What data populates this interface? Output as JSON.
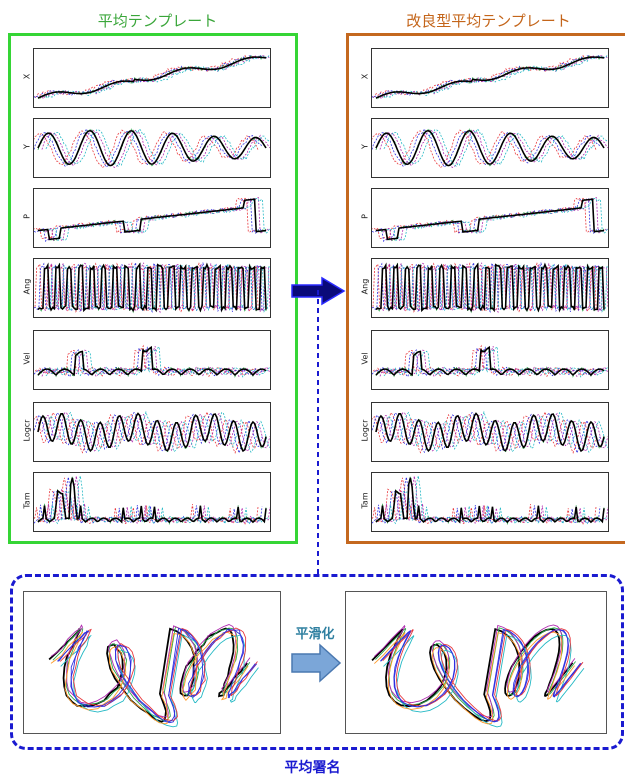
{
  "titles": {
    "left": "平均テンプレート",
    "right": "改良型平均テンプレート"
  },
  "panel_labels": [
    "X",
    "Y",
    "P",
    "Ang",
    "Vel",
    "Logcr",
    "Tam"
  ],
  "arrow_label": "平滑化",
  "bottom_label": "平均署名",
  "colors": {
    "left_frame": "#35d535",
    "right_frame": "#c4681f",
    "dashed_frame": "#1a1ad0",
    "main_arrow": "#0a0a7a",
    "smooth_arrow": "#7ba6d8",
    "series": [
      "#e8383d",
      "#2f2fe0",
      "#2aa84a",
      "#b02ab0",
      "#22b8c4",
      "#ff9a2a"
    ]
  }
}
